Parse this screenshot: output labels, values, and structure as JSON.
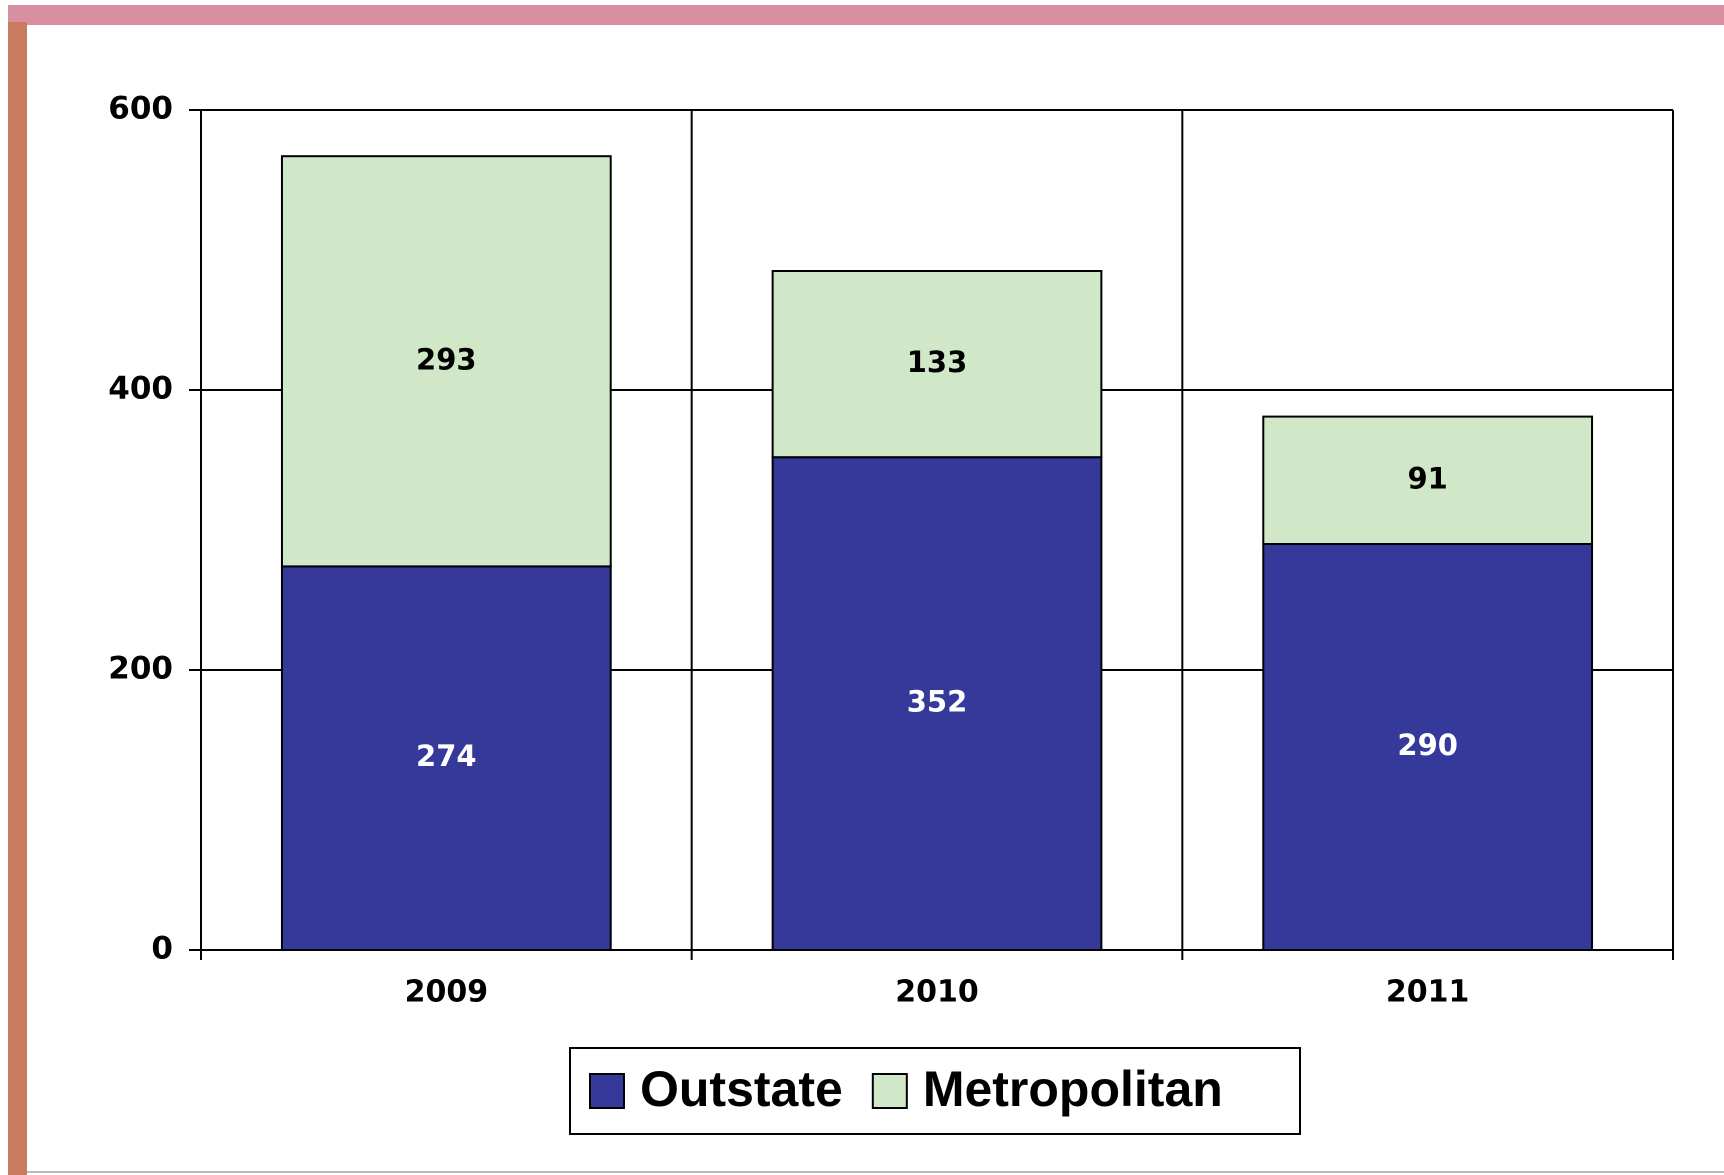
{
  "chart_data": {
    "type": "stacked_bar",
    "categories": [
      "2009",
      "2010",
      "2011"
    ],
    "series": [
      {
        "name": "Outstate",
        "color": "#35399a",
        "values": [
          274,
          352,
          290
        ]
      },
      {
        "name": "Metropolitan",
        "color": "#d0e8c8",
        "values": [
          293,
          133,
          91
        ]
      }
    ],
    "ylim": [
      0,
      600
    ],
    "yticks": [
      0,
      200,
      400,
      600
    ],
    "grid": true,
    "legend": "bottom"
  }
}
